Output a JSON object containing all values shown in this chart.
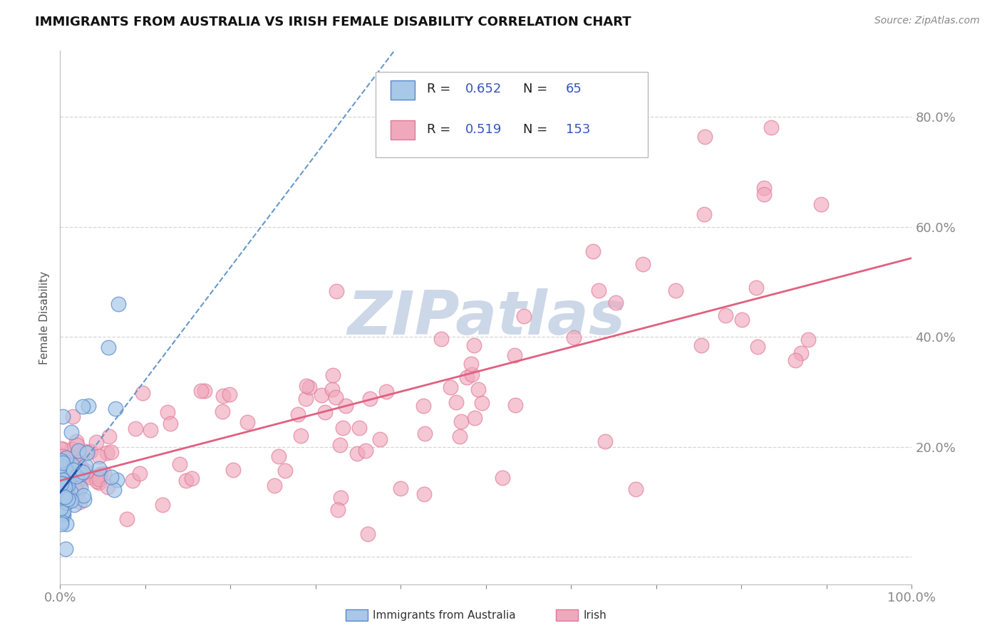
{
  "title": "IMMIGRANTS FROM AUSTRALIA VS IRISH FEMALE DISABILITY CORRELATION CHART",
  "source": "Source: ZipAtlas.com",
  "ylabel": "Female Disability",
  "xlim": [
    0,
    1.0
  ],
  "ylim": [
    -0.05,
    0.92
  ],
  "R_australia": 0.652,
  "N_australia": 65,
  "R_irish": 0.519,
  "N_irish": 153,
  "color_australia_fill": "#a8c8e8",
  "color_australia_edge": "#5588cc",
  "color_irish_fill": "#f0a8bc",
  "color_irish_edge": "#e07898",
  "line_color_australia_solid": "#2255aa",
  "line_color_australia_dash": "#6699cc",
  "line_color_irish": "#e06080",
  "background_color": "#ffffff",
  "grid_color": "#cccccc",
  "watermark_color": "#ccd8e8",
  "title_color": "#111111",
  "axis_label_color": "#555555",
  "tick_label_color": "#3355bb",
  "source_color": "#888888"
}
